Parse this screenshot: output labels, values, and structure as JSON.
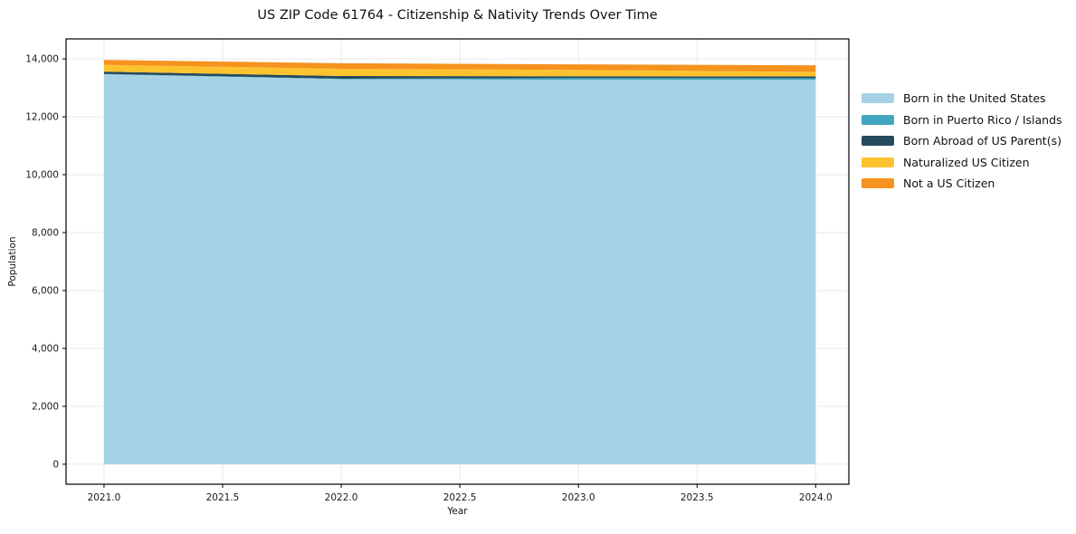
{
  "title": "US ZIP Code 61764 - Citizenship & Nativity Trends Over Time",
  "chart_data": {
    "type": "area",
    "stacked": true,
    "title": "US ZIP Code 61764 - Citizenship & Nativity Trends Over Time",
    "xlabel": "Year",
    "ylabel": "Population",
    "x": [
      2021,
      2022,
      2023,
      2024
    ],
    "series": [
      {
        "name": "Born in the United States",
        "color": "#a5d2e6",
        "values": [
          13470,
          13300,
          13280,
          13275
        ]
      },
      {
        "name": "Born in Puerto Rico / Islands",
        "color": "#41a7c1",
        "values": [
          10,
          15,
          60,
          60
        ]
      },
      {
        "name": "Born Abroad of US Parent(s)",
        "color": "#25495d",
        "values": [
          80,
          95,
          60,
          60
        ]
      },
      {
        "name": "Naturalized US Citizen",
        "color": "#fdc32f",
        "values": [
          235,
          250,
          220,
          155
        ]
      },
      {
        "name": "Not a US Citizen",
        "color": "#f6921e",
        "values": [
          170,
          190,
          190,
          230
        ]
      }
    ],
    "legend": [
      "Born in the United States",
      "Born in Puerto Rico / Islands",
      "Born Abroad of US Parent(s)",
      "Naturalized US Citizen",
      "Not a US Citizen"
    ],
    "legend_position": "right-outside",
    "grid": true,
    "xlim": [
      2020.84,
      2024.14
    ],
    "ylim": [
      -690,
      14690
    ],
    "x_ticks": [
      2021.0,
      2021.5,
      2022.0,
      2022.5,
      2023.0,
      2023.5,
      2024.0
    ],
    "x_tick_labels": [
      "2021.0",
      "2021.5",
      "2022.0",
      "2022.5",
      "2023.0",
      "2023.5",
      "2024.0"
    ],
    "y_ticks": [
      0,
      2000,
      4000,
      6000,
      8000,
      10000,
      12000,
      14000
    ],
    "y_tick_labels": [
      "0",
      "2,000",
      "4,000",
      "6,000",
      "8,000",
      "10,000",
      "12,000",
      "14,000"
    ]
  },
  "colors": {
    "background": "#ffffff",
    "grid": "#e9e9e9",
    "spine": "#000000",
    "tick_text": "#1a1a1a"
  }
}
